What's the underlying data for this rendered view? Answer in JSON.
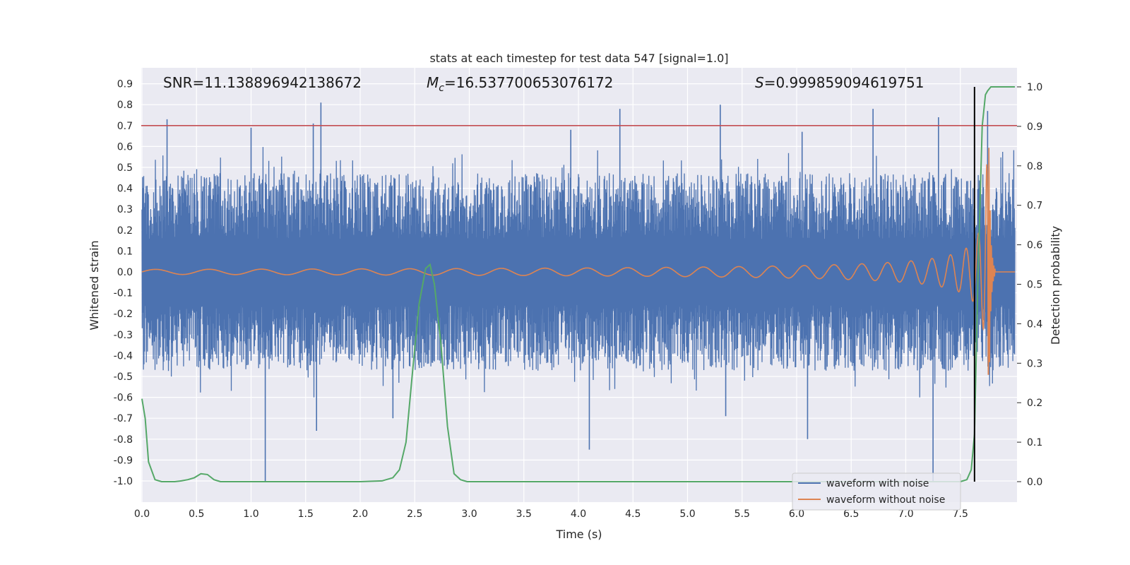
{
  "chart_data": {
    "type": "line",
    "title": "stats at each timestep for test data 547 [signal=1.0]",
    "xlabel": "Time (s)",
    "ylabel": "Whitened strain",
    "y2label": "Detection probability",
    "xlim": [
      0.0,
      8.0
    ],
    "ylim": [
      -1.09,
      1.0
    ],
    "y2lim": [
      -0.045,
      1.045
    ],
    "xticks": [
      "0.0",
      "0.5",
      "1.0",
      "1.5",
      "2.0",
      "2.5",
      "3.0",
      "3.5",
      "4.0",
      "4.5",
      "5.0",
      "5.5",
      "6.0",
      "6.5",
      "7.0",
      "7.5"
    ],
    "yticks": [
      "0.9",
      "0.8",
      "0.7",
      "0.6",
      "0.5",
      "0.4",
      "0.3",
      "0.2",
      "0.1",
      "0.0",
      "-0.1",
      "-0.2",
      "-0.3",
      "-0.4",
      "-0.5",
      "-0.6",
      "-0.7",
      "-0.8",
      "-0.9",
      "-1.0"
    ],
    "y2ticks": [
      "1.0",
      "0.9",
      "0.8",
      "0.7",
      "0.6",
      "0.5",
      "0.4",
      "0.3",
      "0.2",
      "0.1",
      "0.0"
    ],
    "grid": true,
    "legend_position": "bottom-right",
    "annotations": {
      "snr": "SNR=11.138896942138672",
      "mc_symbol": "M",
      "mc_sub": "c",
      "mc_value": "=16.537700653076172",
      "s_symbol": "S",
      "s_value": "=0.999859094619751"
    },
    "threshold_line": {
      "y": 0.7,
      "color": "#c44e52"
    },
    "vertical_marker": {
      "x": 7.63,
      "color": "#000000"
    },
    "series": [
      {
        "name": "waveform with noise",
        "color": "#4c72b0",
        "axis": "left",
        "noise_band": {
          "x_start": 0.0,
          "x_end": 8.0,
          "typical_amplitude": 0.35,
          "max": 0.81,
          "min": -1.0
        },
        "peaks": [
          {
            "x": 0.23,
            "y": 0.73
          },
          {
            "x": 1.0,
            "y": 0.69
          },
          {
            "x": 1.13,
            "y": -1.0
          },
          {
            "x": 1.57,
            "y": 0.71
          },
          {
            "x": 1.64,
            "y": 0.81
          },
          {
            "x": 1.6,
            "y": -0.76
          },
          {
            "x": 2.3,
            "y": -0.7
          },
          {
            "x": 3.93,
            "y": 0.68
          },
          {
            "x": 4.1,
            "y": -0.85
          },
          {
            "x": 4.38,
            "y": 0.78
          },
          {
            "x": 5.3,
            "y": 0.8
          },
          {
            "x": 5.35,
            "y": -0.69
          },
          {
            "x": 6.05,
            "y": 0.67
          },
          {
            "x": 6.1,
            "y": -0.8
          },
          {
            "x": 6.7,
            "y": 0.78
          },
          {
            "x": 7.25,
            "y": -1.0
          },
          {
            "x": 7.3,
            "y": 0.74
          },
          {
            "x": 7.75,
            "y": 0.77
          }
        ]
      },
      {
        "name": "waveform without noise",
        "color": "#dd8452",
        "axis": "left",
        "chirp": {
          "start_amplitude": 0.012,
          "merger_time": 7.76,
          "merger_amplitude": 0.75,
          "ringdown_end": 7.82
        }
      },
      {
        "name": "",
        "color": "#55a868",
        "axis": "right",
        "x": [
          0.0,
          0.03,
          0.06,
          0.12,
          0.18,
          0.24,
          0.3,
          0.36,
          0.42,
          0.48,
          0.54,
          0.6,
          0.66,
          0.72,
          0.78,
          0.85,
          1.0,
          1.5,
          2.0,
          2.2,
          2.3,
          2.36,
          2.42,
          2.48,
          2.54,
          2.6,
          2.64,
          2.68,
          2.74,
          2.8,
          2.86,
          2.92,
          2.98,
          3.1,
          4.0,
          5.0,
          6.0,
          7.0,
          7.5,
          7.56,
          7.6,
          7.63,
          7.66,
          7.7,
          7.73,
          7.75,
          7.78,
          7.82,
          7.9,
          8.0
        ],
        "y": [
          0.21,
          0.16,
          0.05,
          0.005,
          0.0,
          0.0,
          0.0,
          0.002,
          0.005,
          0.01,
          0.02,
          0.018,
          0.005,
          0.0,
          0.0,
          0.0,
          0.0,
          0.0,
          0.0,
          0.002,
          0.01,
          0.03,
          0.1,
          0.28,
          0.45,
          0.54,
          0.55,
          0.5,
          0.35,
          0.14,
          0.02,
          0.005,
          0.0,
          0.0,
          0.0,
          0.0,
          0.0,
          0.0,
          0.0,
          0.005,
          0.03,
          0.12,
          0.5,
          0.9,
          0.98,
          0.99,
          1.0,
          1.0,
          1.0,
          1.0
        ]
      }
    ]
  }
}
